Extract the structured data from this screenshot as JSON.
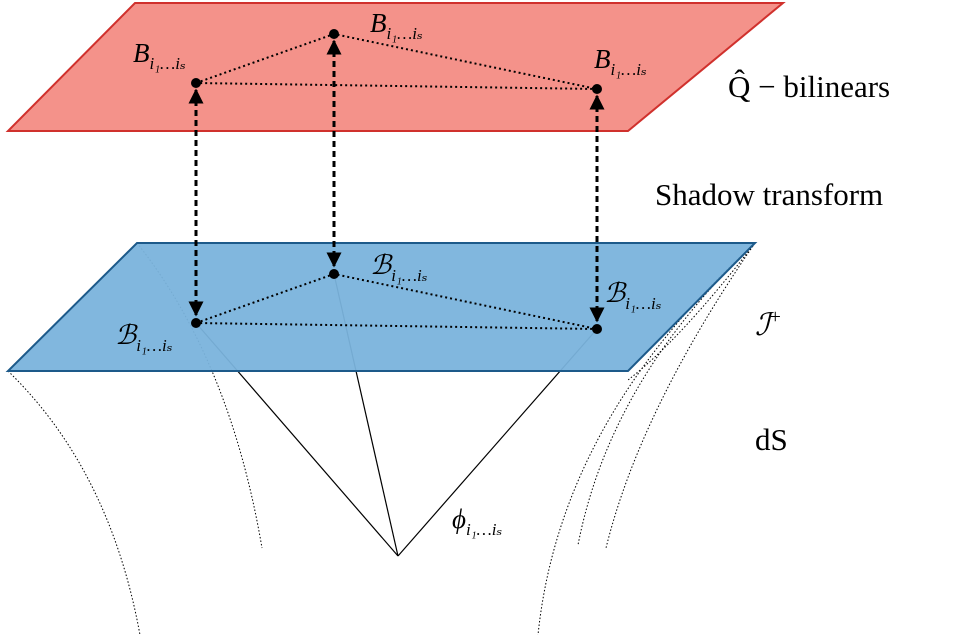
{
  "top_plane": {
    "label": "Q̂ − bilinears",
    "nodes": [
      {
        "symbol": "B",
        "subscript": "i₁…iₛ"
      },
      {
        "symbol": "B",
        "subscript": "i₁…iₛ"
      },
      {
        "symbol": "B",
        "subscript": "i₁…iₛ"
      }
    ]
  },
  "transform_label": "Shadow transform",
  "bottom_plane": {
    "label": "ℐ",
    "label_superscript": "+",
    "nodes": [
      {
        "symbol": "ℬ",
        "subscript": "i₁…iₛ"
      },
      {
        "symbol": "ℬ",
        "subscript": "i₁…iₛ"
      },
      {
        "symbol": "ℬ",
        "subscript": "i₁…iₛ"
      }
    ]
  },
  "bulk": {
    "label": "dS",
    "field": {
      "symbol": "ϕ",
      "subscript": "i₁…iₛ"
    }
  }
}
